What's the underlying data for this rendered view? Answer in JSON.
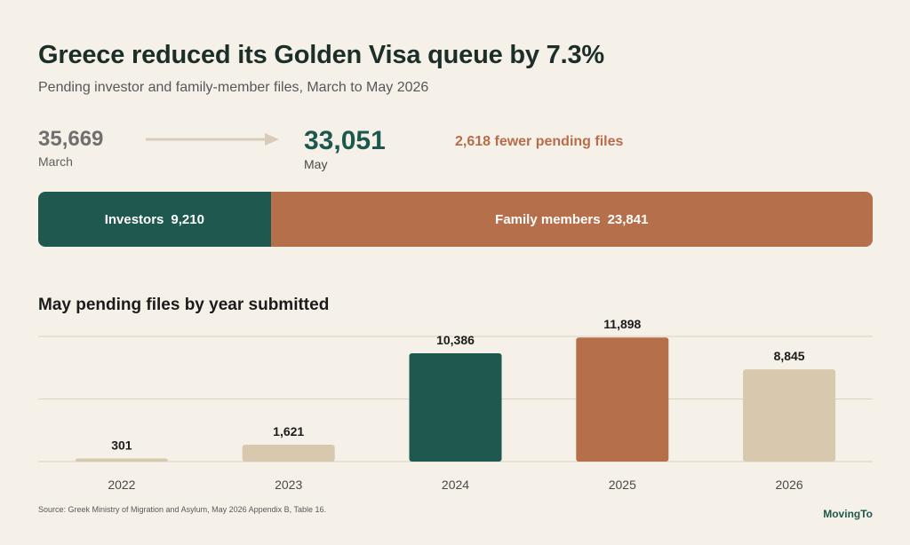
{
  "header": {
    "title": "Greece reduced its Golden Visa queue by 7.3%",
    "subtitle": "Pending investor and family-member files, March to May 2026"
  },
  "comparison": {
    "from_value": "35,669",
    "from_label": "March",
    "to_value": "33,051",
    "to_label": "May",
    "change_note": "2,618 fewer pending files"
  },
  "composition": {
    "total": 33051,
    "segments": [
      {
        "label": "Investors",
        "value": 9210,
        "display": "9,210",
        "color": "#1e584e"
      },
      {
        "label": "Family members",
        "value": 23841,
        "display": "23,841",
        "color": "#b56f4a"
      }
    ]
  },
  "chart_data": {
    "type": "bar",
    "title": "May pending files by year submitted",
    "categories": [
      "2022",
      "2023",
      "2024",
      "2025",
      "2026"
    ],
    "values": [
      301,
      1621,
      10386,
      11898,
      8845
    ],
    "value_labels": [
      "301",
      "1,621",
      "10,386",
      "11,898",
      "8,845"
    ],
    "colors": [
      "#d8c9ae",
      "#d8c9ae",
      "#1e584e",
      "#b56f4a",
      "#d8c9ae"
    ],
    "ylim": [
      0,
      12000
    ],
    "grid": true,
    "xlabel": "",
    "ylabel": ""
  },
  "footer": {
    "source": "Source: Greek Ministry of Migration and Asylum, May 2026 Appendix B, Table 16.",
    "brand": "MovingTo"
  }
}
